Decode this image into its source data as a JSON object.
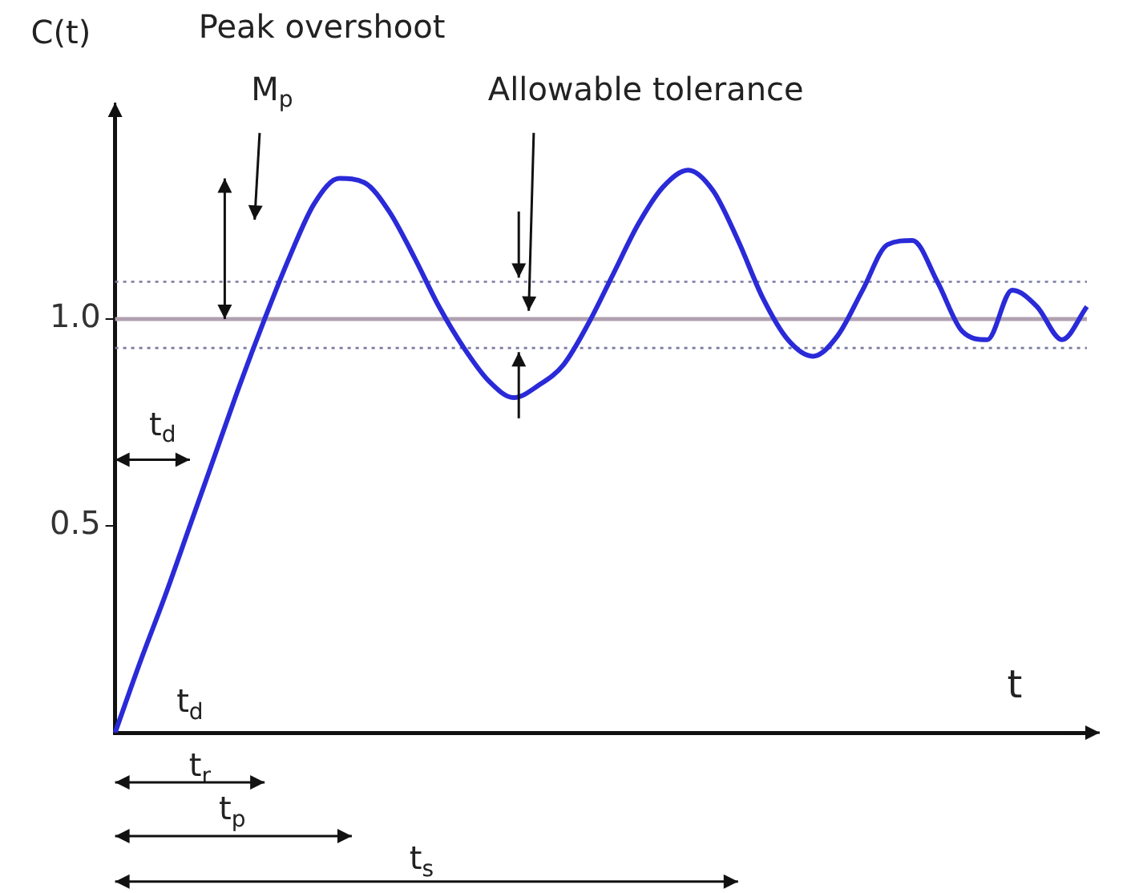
{
  "chart_data": {
    "type": "line",
    "xlabel": "t",
    "ylabel": "C(t)",
    "categories": [
      null,
      null,
      null,
      null,
      null,
      null,
      null,
      null,
      null,
      null,
      null,
      null,
      null,
      null,
      null,
      null,
      null,
      null,
      null,
      null,
      null,
      null,
      null,
      null,
      null,
      null,
      null,
      null,
      null,
      null,
      null,
      null,
      null,
      null,
      null,
      null,
      null,
      null,
      null,
      null
    ],
    "series": [
      {
        "color": "#2a2ad8",
        "values": [
          0,
          0.17,
          0.33,
          0.5,
          0.67,
          0.84,
          1.0,
          1.15,
          1.28,
          1.34,
          1.33,
          1.26,
          1.15,
          1.03,
          0.93,
          0.85,
          0.81,
          0.84,
          0.89,
          0.99,
          1.11,
          1.23,
          1.32,
          1.36,
          1.31,
          1.19,
          1.05,
          0.95,
          0.91,
          0.96,
          1.07,
          1.18,
          1.19,
          1.09,
          0.97,
          0.95,
          1.07,
          1.03,
          0.95,
          1.03
        ]
      }
    ],
    "ylim": [
      0,
      1.5
    ],
    "yticks": [
      0.5,
      {
        "value": 1,
        "label": "1.0"
      }
    ],
    "ref_lines": [
      {
        "axis": "y",
        "value": 1,
        "color": "#b0a0b0",
        "line_style": "solid"
      },
      {
        "axis": "y",
        "value": 1.09,
        "color": "#7a7aa0",
        "line_style": "dotted"
      },
      {
        "axis": "y",
        "value": 0.93,
        "color": "#7a7aa0",
        "line_style": "dotted"
      }
    ],
    "annotations": [
      "Peak overshoot",
      "M$_{p}$",
      "Allowable tolerance",
      "t$_{d}$",
      "t$_{d}$",
      "t$_{r}$",
      "t$_{p}$",
      "t$_{s}$"
    ],
    "grid": false,
    "legend": false,
    "marker": "none",
    "line_style": "solid",
    "tick_labels": "y"
  }
}
